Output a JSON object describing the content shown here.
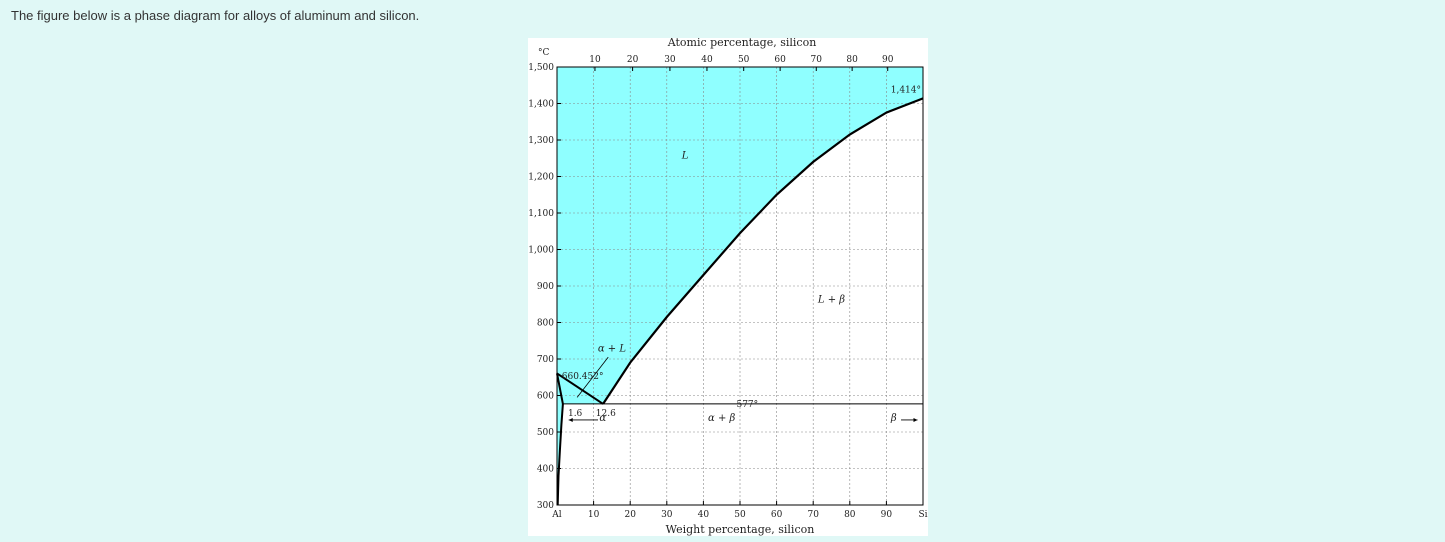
{
  "intro_text": "The figure below is a phase diagram for alloys of aluminum and silicon.",
  "colors": {
    "page_bg": "#e0f8f6",
    "liquid_fill": "#8fffff",
    "line": "#000000",
    "grid": "#888888"
  },
  "diagram": {
    "top_axis_title": "Atomic percentage, silicon",
    "bottom_axis_title": "Weight percentage, silicon",
    "temp_unit": "°C",
    "x_ticks_atomic": [
      {
        "value": 10,
        "label": "10"
      },
      {
        "value": 20,
        "label": "20"
      },
      {
        "value": 30,
        "label": "30"
      },
      {
        "value": 40,
        "label": "40"
      },
      {
        "value": 50,
        "label": "50"
      },
      {
        "value": 60,
        "label": "60"
      },
      {
        "value": 70,
        "label": "70"
      },
      {
        "value": 80,
        "label": "80"
      },
      {
        "value": 90,
        "label": "90"
      }
    ],
    "x_ticks_weight": [
      {
        "value": 0,
        "label": "Al"
      },
      {
        "value": 10,
        "label": "10"
      },
      {
        "value": 20,
        "label": "20"
      },
      {
        "value": 30,
        "label": "30"
      },
      {
        "value": 40,
        "label": "40"
      },
      {
        "value": 50,
        "label": "50"
      },
      {
        "value": 60,
        "label": "60"
      },
      {
        "value": 70,
        "label": "70"
      },
      {
        "value": 80,
        "label": "80"
      },
      {
        "value": 90,
        "label": "90"
      },
      {
        "value": 100,
        "label": "Si"
      }
    ],
    "y_ticks": [
      {
        "value": 300,
        "label": "300"
      },
      {
        "value": 400,
        "label": "400"
      },
      {
        "value": 500,
        "label": "500"
      },
      {
        "value": 600,
        "label": "600"
      },
      {
        "value": 700,
        "label": "700"
      },
      {
        "value": 800,
        "label": "800"
      },
      {
        "value": 900,
        "label": "900"
      },
      {
        "value": 1000,
        "label": "1,000"
      },
      {
        "value": 1100,
        "label": "1,100"
      },
      {
        "value": 1200,
        "label": "1,200"
      },
      {
        "value": 1300,
        "label": "1,300"
      },
      {
        "value": 1400,
        "label": "1,400"
      },
      {
        "value": 1500,
        "label": "1,500"
      }
    ],
    "x_range": [
      0,
      100
    ],
    "y_range": [
      300,
      1500
    ],
    "phase_labels": {
      "liquid": "L",
      "alpha_liquid": "α + L",
      "liquid_beta": "L + β",
      "alpha_beta": "α + β",
      "alpha": "α",
      "beta": "β"
    },
    "annotations": {
      "al_melting": "660.452°",
      "si_melting": "1,414°",
      "eutectic_temp": "577°",
      "solubility_limit": "1.6",
      "eutectic_comp": "12.6"
    },
    "key_points": {
      "al_melt": {
        "wt": 0,
        "temp": 660.452
      },
      "si_melt": {
        "wt": 100,
        "temp": 1414
      },
      "eutectic": {
        "wt": 12.6,
        "temp": 577
      },
      "alpha_max": {
        "wt": 1.6,
        "temp": 577
      }
    },
    "alpha_solvus": [
      {
        "wt": 1.6,
        "temp": 577
      },
      {
        "wt": 1.2,
        "temp": 520
      },
      {
        "wt": 0.8,
        "temp": 450
      },
      {
        "wt": 0.4,
        "temp": 380
      },
      {
        "wt": 0.2,
        "temp": 300
      }
    ],
    "si_liquidus": [
      {
        "wt": 12.6,
        "temp": 577
      },
      {
        "wt": 20,
        "temp": 690
      },
      {
        "wt": 30,
        "temp": 815
      },
      {
        "wt": 40,
        "temp": 930
      },
      {
        "wt": 50,
        "temp": 1045
      },
      {
        "wt": 60,
        "temp": 1150
      },
      {
        "wt": 70,
        "temp": 1240
      },
      {
        "wt": 80,
        "temp": 1315
      },
      {
        "wt": 90,
        "temp": 1375
      },
      {
        "wt": 100,
        "temp": 1414
      }
    ]
  }
}
